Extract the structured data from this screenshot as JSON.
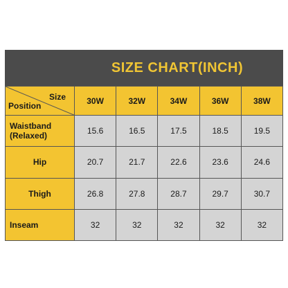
{
  "title": "SIZE CHART(INCH)",
  "corner": {
    "size_label": "Size",
    "position_label": "Position"
  },
  "colors": {
    "header_bg": "#4b4b4b",
    "title_color": "#f0c534",
    "header_cell": "#f3c431",
    "data_cell": "#d4d4d4"
  },
  "chart_data": {
    "type": "table",
    "title": "SIZE CHART(INCH)",
    "columns": [
      "30W",
      "32W",
      "34W",
      "36W",
      "38W"
    ],
    "rows": [
      {
        "label_line1": "Waistband",
        "label_line2": "(Relaxed)",
        "values": [
          "15.6",
          "16.5",
          "17.5",
          "18.5",
          "19.5"
        ]
      },
      {
        "label_line1": "Hip",
        "label_line2": "",
        "values": [
          "20.7",
          "21.7",
          "22.6",
          "23.6",
          "24.6"
        ]
      },
      {
        "label_line1": "Thigh",
        "label_line2": "",
        "values": [
          "26.8",
          "27.8",
          "28.7",
          "29.7",
          "30.7"
        ]
      },
      {
        "label_line1": "Inseam",
        "label_line2": "",
        "values": [
          "32",
          "32",
          "32",
          "32",
          "32"
        ]
      }
    ]
  }
}
